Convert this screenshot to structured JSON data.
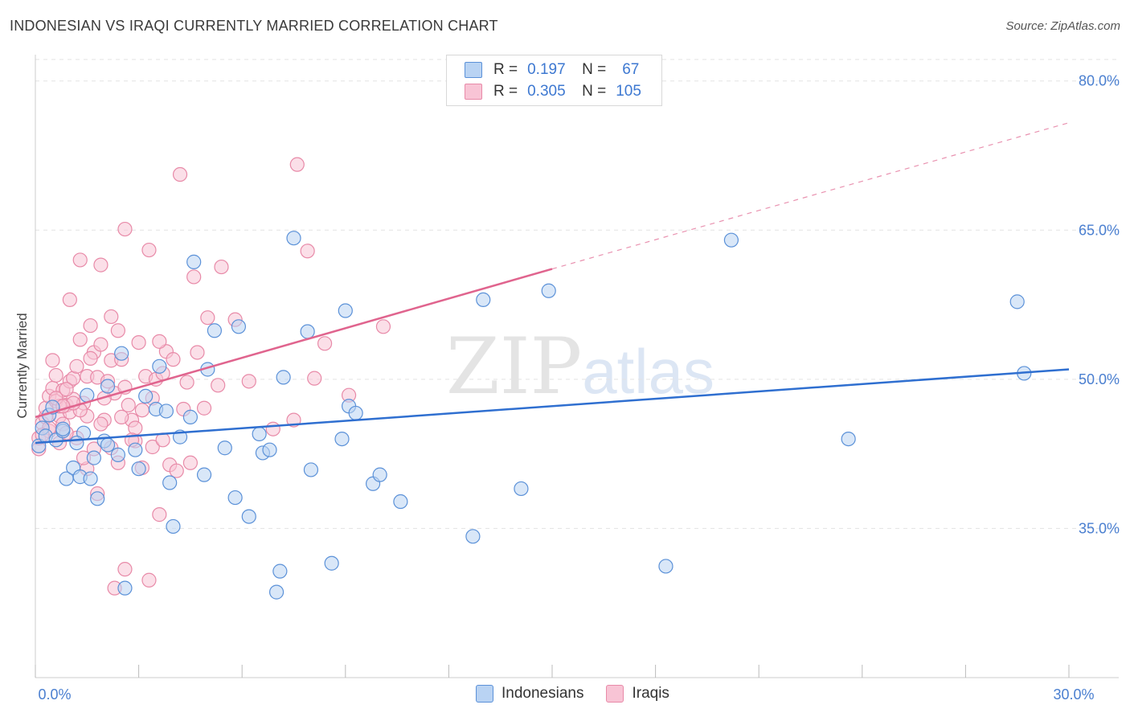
{
  "header": {
    "title": "INDONESIAN VS IRAQI CURRENTLY MARRIED CORRELATION CHART",
    "source": "Source: ZipAtlas.com"
  },
  "watermark": {
    "zip": "ZIP",
    "atlas": "atlas"
  },
  "legend_top": {
    "rows": [
      {
        "r_label": "R =",
        "r_value": "0.197",
        "n_label": "N =",
        "n_value": "67"
      },
      {
        "r_label": "R =",
        "r_value": "0.305",
        "n_label": "N =",
        "n_value": "105"
      }
    ]
  },
  "legend_bottom": {
    "items": [
      "Indonesians",
      "Iraqis"
    ]
  },
  "colors": {
    "indonesian_fill": "#b9d3f3",
    "indonesian_stroke": "#5b91d8",
    "indonesian_line": "#2f6fd0",
    "iraqi_fill": "#f8c4d5",
    "iraqi_stroke": "#e88aa8",
    "iraqi_line": "#e0648e",
    "grid": "#e3e3e3",
    "axis_text": "#4a7fd0"
  },
  "chart_data": {
    "type": "scatter",
    "title": "INDONESIAN VS IRAQI CURRENTLY MARRIED CORRELATION CHART",
    "xlabel": "",
    "ylabel": "Currently Married",
    "xlim": [
      0,
      30
    ],
    "ylim": [
      20,
      82
    ],
    "x_ticks": [
      0,
      3,
      6,
      9,
      12,
      15,
      18,
      21,
      24,
      27,
      30
    ],
    "x_tick_labels_shown": {
      "0": "0.0%",
      "30": "30.0%"
    },
    "y_gridlines": [
      35,
      50,
      65,
      80
    ],
    "y_tick_labels": [
      "35.0%",
      "50.0%",
      "65.0%",
      "80.0%"
    ],
    "series": [
      {
        "name": "Indonesians",
        "R": 0.197,
        "N": 67,
        "trend": {
          "x0": 0,
          "y0": 43.6,
          "x1": 30,
          "y1": 51.0
        },
        "points": [
          [
            0.1,
            43.3
          ],
          [
            0.2,
            45.1
          ],
          [
            0.3,
            44.3
          ],
          [
            0.4,
            46.4
          ],
          [
            0.5,
            47.2
          ],
          [
            0.6,
            43.9
          ],
          [
            0.8,
            44.8
          ],
          [
            0.9,
            40.0
          ],
          [
            1.1,
            41.1
          ],
          [
            1.3,
            40.2
          ],
          [
            1.4,
            44.6
          ],
          [
            1.5,
            48.4
          ],
          [
            1.6,
            40.0
          ],
          [
            1.8,
            38.0
          ],
          [
            2.0,
            43.8
          ],
          [
            2.1,
            43.4
          ],
          [
            2.5,
            52.6
          ],
          [
            2.6,
            29.0
          ],
          [
            2.9,
            42.9
          ],
          [
            3.0,
            41.0
          ],
          [
            3.2,
            48.3
          ],
          [
            3.5,
            47.0
          ],
          [
            3.6,
            51.3
          ],
          [
            3.9,
            39.6
          ],
          [
            4.0,
            35.2
          ],
          [
            4.2,
            44.2
          ],
          [
            4.5,
            46.2
          ],
          [
            4.6,
            61.8
          ],
          [
            4.9,
            40.4
          ],
          [
            5.2,
            54.9
          ],
          [
            5.5,
            43.1
          ],
          [
            5.8,
            38.1
          ],
          [
            5.9,
            55.3
          ],
          [
            6.2,
            36.2
          ],
          [
            6.6,
            42.6
          ],
          [
            6.8,
            42.9
          ],
          [
            7.0,
            28.6
          ],
          [
            7.1,
            30.7
          ],
          [
            7.2,
            50.2
          ],
          [
            7.5,
            64.2
          ],
          [
            7.9,
            54.8
          ],
          [
            8.0,
            40.9
          ],
          [
            8.6,
            31.5
          ],
          [
            8.9,
            44.0
          ],
          [
            9.0,
            56.9
          ],
          [
            9.1,
            47.3
          ],
          [
            9.3,
            46.6
          ],
          [
            9.8,
            39.5
          ],
          [
            10.0,
            40.4
          ],
          [
            10.6,
            37.7
          ],
          [
            12.7,
            34.2
          ],
          [
            13.0,
            58.0
          ],
          [
            14.1,
            39.0
          ],
          [
            14.9,
            58.9
          ],
          [
            18.3,
            31.2
          ],
          [
            20.2,
            64.0
          ],
          [
            23.6,
            44.0
          ],
          [
            28.5,
            57.8
          ],
          [
            28.7,
            50.6
          ],
          [
            2.1,
            49.3
          ],
          [
            1.7,
            42.1
          ],
          [
            0.8,
            45.0
          ],
          [
            3.8,
            46.8
          ],
          [
            5.0,
            51.0
          ],
          [
            6.5,
            44.5
          ],
          [
            2.4,
            42.4
          ],
          [
            1.2,
            43.6
          ]
        ]
      },
      {
        "name": "Iraqis",
        "R": 0.305,
        "N": 105,
        "trend": {
          "x0": 0,
          "y0": 46.2,
          "x1": 15.0,
          "y1": 61.1,
          "dashed_to": {
            "x": 30,
            "y": 75.8
          }
        },
        "points": [
          [
            0.1,
            43.0
          ],
          [
            0.1,
            44.1
          ],
          [
            0.2,
            45.6
          ],
          [
            0.3,
            46.2
          ],
          [
            0.3,
            47.1
          ],
          [
            0.4,
            48.3
          ],
          [
            0.4,
            44.8
          ],
          [
            0.5,
            51.9
          ],
          [
            0.5,
            49.1
          ],
          [
            0.6,
            50.4
          ],
          [
            0.6,
            47.8
          ],
          [
            0.7,
            43.6
          ],
          [
            0.7,
            46.3
          ],
          [
            0.8,
            48.9
          ],
          [
            0.8,
            45.5
          ],
          [
            0.9,
            47.4
          ],
          [
            1.0,
            49.8
          ],
          [
            1.0,
            46.7
          ],
          [
            1.0,
            58.0
          ],
          [
            1.1,
            50.1
          ],
          [
            1.1,
            48.0
          ],
          [
            1.2,
            44.1
          ],
          [
            1.3,
            62.0
          ],
          [
            1.3,
            54.0
          ],
          [
            1.4,
            47.6
          ],
          [
            1.5,
            50.3
          ],
          [
            1.5,
            46.3
          ],
          [
            1.6,
            55.4
          ],
          [
            1.7,
            52.7
          ],
          [
            1.8,
            50.2
          ],
          [
            1.9,
            53.5
          ],
          [
            1.9,
            61.5
          ],
          [
            2.0,
            45.9
          ],
          [
            2.1,
            49.8
          ],
          [
            2.2,
            51.9
          ],
          [
            2.2,
            56.3
          ],
          [
            2.3,
            48.6
          ],
          [
            2.4,
            54.9
          ],
          [
            2.5,
            52.0
          ],
          [
            2.6,
            49.2
          ],
          [
            2.6,
            65.1
          ],
          [
            2.7,
            47.4
          ],
          [
            2.8,
            45.9
          ],
          [
            2.9,
            43.8
          ],
          [
            3.0,
            53.7
          ],
          [
            3.1,
            41.1
          ],
          [
            3.2,
            50.3
          ],
          [
            3.3,
            63.0
          ],
          [
            3.4,
            43.2
          ],
          [
            3.5,
            50.0
          ],
          [
            3.6,
            36.4
          ],
          [
            3.7,
            43.9
          ],
          [
            3.8,
            52.8
          ],
          [
            3.9,
            41.4
          ],
          [
            4.0,
            52.0
          ],
          [
            4.1,
            40.8
          ],
          [
            4.2,
            70.6
          ],
          [
            4.3,
            47.0
          ],
          [
            4.4,
            49.7
          ],
          [
            4.6,
            60.3
          ],
          [
            4.7,
            52.7
          ],
          [
            5.0,
            56.2
          ],
          [
            5.3,
            49.4
          ],
          [
            5.4,
            61.3
          ],
          [
            5.8,
            56.0
          ],
          [
            6.2,
            49.8
          ],
          [
            6.9,
            45.0
          ],
          [
            7.5,
            45.9
          ],
          [
            7.6,
            71.6
          ],
          [
            7.9,
            62.9
          ],
          [
            8.1,
            50.1
          ],
          [
            8.4,
            53.6
          ],
          [
            9.1,
            48.4
          ],
          [
            10.1,
            55.3
          ],
          [
            1.5,
            41.0
          ],
          [
            2.3,
            29.0
          ],
          [
            2.6,
            30.9
          ],
          [
            3.3,
            29.8
          ],
          [
            1.8,
            38.5
          ],
          [
            2.9,
            45.1
          ],
          [
            0.9,
            44.6
          ],
          [
            1.3,
            46.9
          ],
          [
            2.0,
            48.1
          ],
          [
            1.6,
            52.1
          ],
          [
            0.4,
            45.1
          ],
          [
            3.6,
            53.8
          ],
          [
            4.9,
            47.1
          ],
          [
            1.1,
            47.6
          ],
          [
            2.4,
            41.6
          ],
          [
            0.7,
            47.3
          ],
          [
            1.9,
            45.5
          ],
          [
            0.6,
            48.1
          ],
          [
            3.1,
            46.9
          ],
          [
            2.2,
            43.1
          ],
          [
            1.4,
            42.1
          ],
          [
            0.2,
            44.4
          ],
          [
            3.7,
            50.6
          ],
          [
            0.9,
            49.0
          ],
          [
            1.7,
            43.0
          ],
          [
            2.8,
            43.9
          ],
          [
            4.5,
            41.6
          ],
          [
            1.2,
            51.3
          ],
          [
            2.5,
            46.2
          ],
          [
            0.8,
            47.3
          ],
          [
            3.4,
            48.1
          ]
        ]
      }
    ]
  }
}
